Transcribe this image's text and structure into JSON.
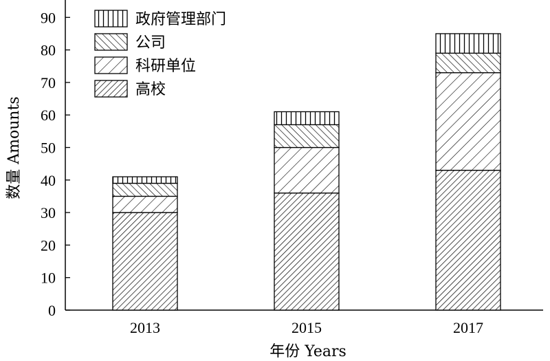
{
  "chart_data": {
    "type": "bar",
    "stacked": true,
    "categories": [
      "2013",
      "2015",
      "2017"
    ],
    "series": [
      {
        "name": "高校",
        "pattern": "dense-diagonal",
        "values": [
          30,
          36,
          43
        ]
      },
      {
        "name": "科研单位",
        "pattern": "wide-diagonal",
        "values": [
          5,
          14,
          30
        ]
      },
      {
        "name": "公司",
        "pattern": "cross-diagonal",
        "values": [
          4,
          7,
          6
        ]
      },
      {
        "name": "政府管理部门",
        "pattern": "vertical-lines",
        "values": [
          2,
          4,
          6
        ]
      }
    ],
    "legend_order": [
      "政府管理部门",
      "公司",
      "科研单位",
      "高校"
    ],
    "xlabel": "年份 Years",
    "ylabel": "数量 Amounts",
    "ylim": [
      0,
      95
    ],
    "yticks": [
      0,
      10,
      20,
      30,
      40,
      50,
      60,
      70,
      80,
      90
    ],
    "grid": false,
    "legend_position": "top-left"
  }
}
